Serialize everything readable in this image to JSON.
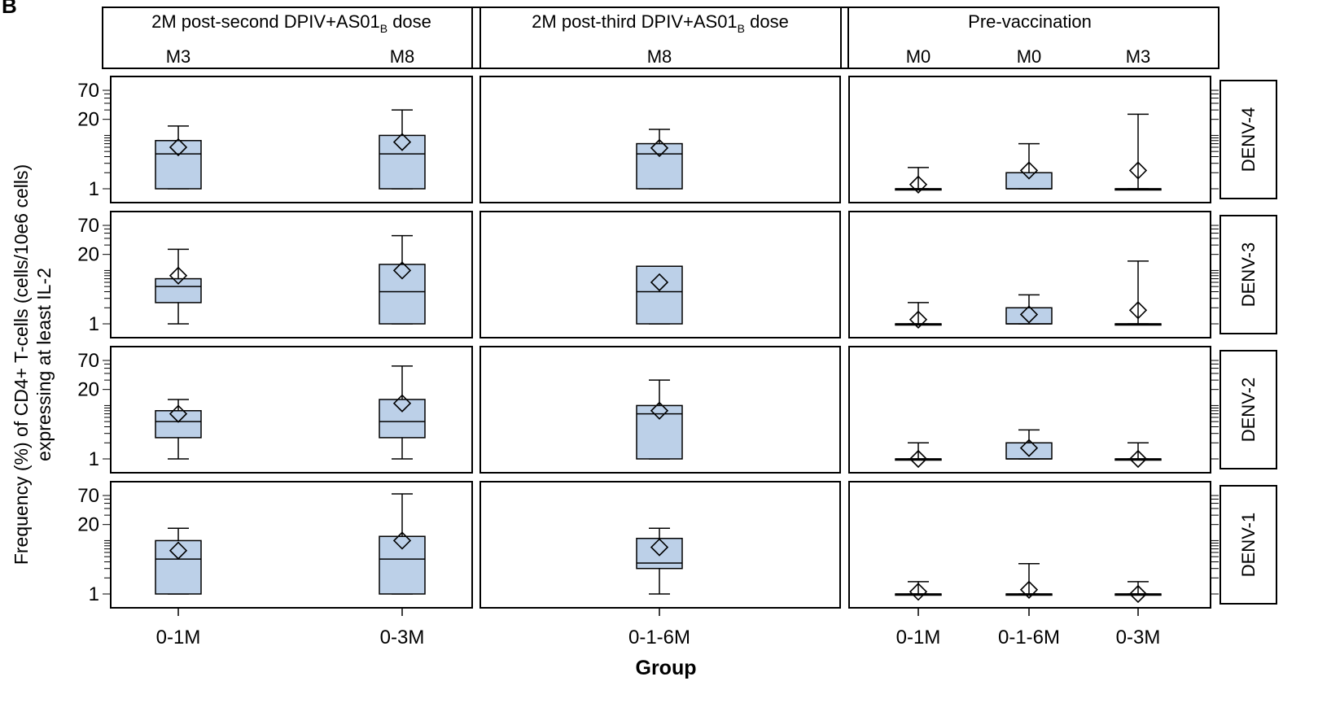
{
  "panel_label": "B",
  "chart_data": {
    "type": "box",
    "y_scale": "log",
    "ylim": [
      1,
      70
    ],
    "yticks": [
      1,
      20,
      70
    ],
    "ylabel_line1": "Frequency (%) of CD4+ T-cells (cells/10e6 cells)",
    "ylabel_line2": "expressing at least IL-2",
    "xlabel": "Group",
    "x_categories": [
      "0-1M",
      "0-3M",
      "0-1-6M",
      "0-1M",
      "0-1-6M",
      "0-3M"
    ],
    "columns": [
      {
        "title": "2M post-second DPIV+AS01",
        "title_sub": "B",
        "title_suffix": " dose",
        "visits": [
          "M3",
          "M8"
        ]
      },
      {
        "title": "2M post-third DPIV+AS01",
        "title_sub": "B",
        "title_suffix": " dose",
        "visits": [
          "M8"
        ]
      },
      {
        "title": "Pre-vaccination",
        "title_sub": "",
        "title_suffix": "",
        "visits": [
          "M0",
          "M0",
          "M3"
        ]
      }
    ],
    "rows": [
      "DENV-4",
      "DENV-3",
      "DENV-2",
      "DENV-1"
    ],
    "boxes": {
      "DENV-4": [
        {
          "column": 0,
          "group": "0-1M",
          "whisker_low": 1,
          "q1": 1,
          "median": 4.5,
          "q3": 8,
          "whisker_high": 15,
          "mean": 6
        },
        {
          "column": 0,
          "group": "0-3M",
          "whisker_low": 1,
          "q1": 1,
          "median": 4.5,
          "q3": 10,
          "whisker_high": 30,
          "mean": 7.5
        },
        {
          "column": 1,
          "group": "0-1-6M",
          "whisker_low": 1,
          "q1": 1,
          "median": 4.5,
          "q3": 7,
          "whisker_high": 13,
          "mean": 5.8
        },
        {
          "column": 2,
          "group": "0-1M",
          "whisker_low": 1,
          "q1": 1,
          "median": 1,
          "q3": 1,
          "whisker_high": 2.5,
          "mean": 1.2
        },
        {
          "column": 2,
          "group": "0-1-6M",
          "whisker_low": 1,
          "q1": 1,
          "median": 1,
          "q3": 2,
          "whisker_high": 7,
          "mean": 2.2
        },
        {
          "column": 2,
          "group": "0-3M",
          "whisker_low": 1,
          "q1": 1,
          "median": 1,
          "q3": 1,
          "whisker_high": 25,
          "mean": 2.2
        }
      ],
      "DENV-3": [
        {
          "column": 0,
          "group": "0-1M",
          "whisker_low": 1,
          "q1": 2.5,
          "median": 5,
          "q3": 7,
          "whisker_high": 25,
          "mean": 8
        },
        {
          "column": 0,
          "group": "0-3M",
          "whisker_low": 1,
          "q1": 1,
          "median": 4,
          "q3": 13,
          "whisker_high": 45,
          "mean": 10
        },
        {
          "column": 1,
          "group": "0-1-6M",
          "whisker_low": 1,
          "q1": 1,
          "median": 4,
          "q3": 12,
          "whisker_high": 12,
          "mean": 6
        },
        {
          "column": 2,
          "group": "0-1M",
          "whisker_low": 1,
          "q1": 1,
          "median": 1,
          "q3": 1,
          "whisker_high": 2.5,
          "mean": 1.2
        },
        {
          "column": 2,
          "group": "0-1-6M",
          "whisker_low": 1,
          "q1": 1,
          "median": 1,
          "q3": 2,
          "whisker_high": 3.5,
          "mean": 1.5
        },
        {
          "column": 2,
          "group": "0-3M",
          "whisker_low": 1,
          "q1": 1,
          "median": 1,
          "q3": 1,
          "whisker_high": 15,
          "mean": 1.8
        }
      ],
      "DENV-2": [
        {
          "column": 0,
          "group": "0-1M",
          "whisker_low": 1,
          "q1": 2.5,
          "median": 5,
          "q3": 8,
          "whisker_high": 13,
          "mean": 7
        },
        {
          "column": 0,
          "group": "0-3M",
          "whisker_low": 1,
          "q1": 2.5,
          "median": 5,
          "q3": 13,
          "whisker_high": 55,
          "mean": 11
        },
        {
          "column": 1,
          "group": "0-1-6M",
          "whisker_low": 1,
          "q1": 1,
          "median": 7,
          "q3": 10,
          "whisker_high": 30,
          "mean": 8
        },
        {
          "column": 2,
          "group": "0-1M",
          "whisker_low": 1,
          "q1": 1,
          "median": 1,
          "q3": 1,
          "whisker_high": 2,
          "mean": 1
        },
        {
          "column": 2,
          "group": "0-1-6M",
          "whisker_low": 1,
          "q1": 1,
          "median": 1,
          "q3": 2,
          "whisker_high": 3.5,
          "mean": 1.6
        },
        {
          "column": 2,
          "group": "0-3M",
          "whisker_low": 1,
          "q1": 1,
          "median": 1,
          "q3": 1,
          "whisker_high": 2,
          "mean": 1
        }
      ],
      "DENV-1": [
        {
          "column": 0,
          "group": "0-1M",
          "whisker_low": 1,
          "q1": 1,
          "median": 4.5,
          "q3": 10,
          "whisker_high": 17,
          "mean": 6.5
        },
        {
          "column": 0,
          "group": "0-3M",
          "whisker_low": 1,
          "q1": 1,
          "median": 4.5,
          "q3": 12,
          "whisker_high": 75,
          "mean": 10
        },
        {
          "column": 1,
          "group": "0-1-6M",
          "whisker_low": 1,
          "q1": 3,
          "median": 3.8,
          "q3": 11,
          "whisker_high": 17,
          "mean": 7.5
        },
        {
          "column": 2,
          "group": "0-1M",
          "whisker_low": 1,
          "q1": 1,
          "median": 1,
          "q3": 1,
          "whisker_high": 1.7,
          "mean": 1.1
        },
        {
          "column": 2,
          "group": "0-1-6M",
          "whisker_low": 1,
          "q1": 1,
          "median": 1,
          "q3": 1,
          "whisker_high": 3.7,
          "mean": 1.2
        },
        {
          "column": 2,
          "group": "0-3M",
          "whisker_low": 1,
          "q1": 1,
          "median": 1,
          "q3": 1,
          "whisker_high": 1.7,
          "mean": 1
        }
      ]
    },
    "colors": {
      "box_fill": "#bcd0e8",
      "stroke": "#000000"
    },
    "grid": false,
    "legend": "none"
  }
}
